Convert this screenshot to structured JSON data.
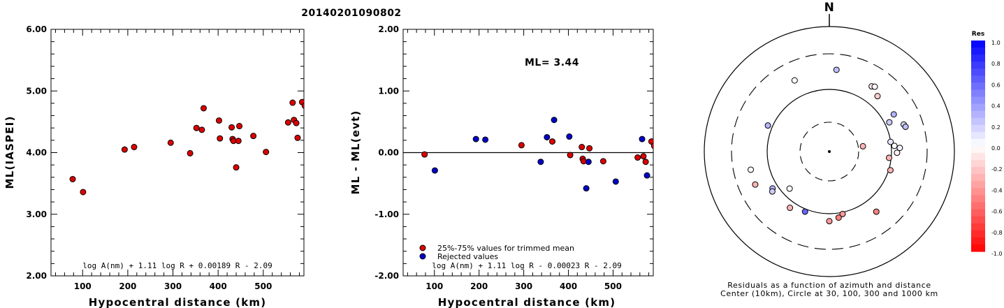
{
  "event_id": "20140201090802",
  "chart_data": [
    {
      "type": "scatter",
      "title": "",
      "xlabel": "Hypocentral distance (km)",
      "ylabel": "ML(IASPEI)",
      "xlim": [
        30,
        590
      ],
      "ylim": [
        2.0,
        6.0
      ],
      "xticks": [
        "100",
        "200",
        "300",
        "400",
        "500"
      ],
      "yticks": [
        "2.00",
        "3.00",
        "4.00",
        "5.00",
        "6.00"
      ],
      "formula": "log A(nm) + 1.11 log R + 0.00189 R - 2.09",
      "series": [
        {
          "color": "#dd0000",
          "points": [
            [
              78,
              3.57
            ],
            [
              101,
              3.36
            ],
            [
              193,
              4.05
            ],
            [
              214,
              4.09
            ],
            [
              295,
              4.16
            ],
            [
              338,
              3.99
            ],
            [
              352,
              4.4
            ],
            [
              364,
              4.37
            ],
            [
              368,
              4.72
            ],
            [
              402,
              4.52
            ],
            [
              404,
              4.23
            ],
            [
              430,
              4.41
            ],
            [
              432,
              4.22
            ],
            [
              434,
              4.19
            ],
            [
              440,
              3.76
            ],
            [
              445,
              4.19
            ],
            [
              447,
              4.43
            ],
            [
              478,
              4.27
            ],
            [
              506,
              4.01
            ],
            [
              555,
              4.49
            ],
            [
              565,
              4.81
            ],
            [
              568,
              4.53
            ],
            [
              573,
              4.48
            ],
            [
              576,
              4.24
            ],
            [
              586,
              4.82
            ],
            [
              592,
              4.76
            ]
          ]
        }
      ]
    },
    {
      "type": "scatter",
      "title": "",
      "xlabel": "Hypocentral distance (km)",
      "ylabel": "ML - ML(evt)",
      "xlim": [
        30,
        590
      ],
      "ylim": [
        -2.0,
        2.0
      ],
      "xticks": [
        "100",
        "200",
        "300",
        "400",
        "500"
      ],
      "yticks": [
        "-2.00",
        "-1.00",
        "0.00",
        "1.00",
        "2.00"
      ],
      "annotation": "ML= 3.44",
      "formula": "log A(nm) + 1.11 log R - 0.00023 R - 2.09",
      "series": [
        {
          "name": "25%-75% values for trimmed mean",
          "color": "#dd0000",
          "points": [
            [
              78,
              -0.03
            ],
            [
              295,
              0.12
            ],
            [
              364,
              0.18
            ],
            [
              404,
              -0.04
            ],
            [
              430,
              0.09
            ],
            [
              432,
              -0.1
            ],
            [
              434,
              -0.14
            ],
            [
              447,
              0.07
            ],
            [
              478,
              -0.14
            ],
            [
              555,
              -0.08
            ],
            [
              568,
              -0.06
            ],
            [
              573,
              -0.15
            ],
            [
              586,
              0.18
            ],
            [
              592,
              0.11
            ]
          ]
        },
        {
          "name": "Rejected values",
          "color": "#0000cc",
          "points": [
            [
              101,
              -0.29
            ],
            [
              193,
              0.22
            ],
            [
              214,
              0.21
            ],
            [
              338,
              -0.15
            ],
            [
              352,
              0.25
            ],
            [
              368,
              0.53
            ],
            [
              402,
              0.26
            ],
            [
              440,
              -0.58
            ],
            [
              445,
              -0.15
            ],
            [
              506,
              -0.47
            ],
            [
              565,
              0.22
            ],
            [
              576,
              -0.37
            ]
          ]
        }
      ]
    },
    {
      "type": "scatter",
      "title": "N",
      "caption_line1": "Residuals as a function of azimuth and distance",
      "caption_line2": "Center (10km), Circle at 30, 100, 300 and 1000 km",
      "colorbar_label": "Res",
      "colorbar_ticks": [
        "1.0",
        "0.8",
        "0.6",
        "0.4",
        "0.2",
        "0.0",
        "-0.2",
        "-0.4",
        "-0.6",
        "-0.8",
        "-1.0"
      ],
      "stations": [
        {
          "az": 5,
          "dist": 590,
          "res": 0.25
        },
        {
          "az": 334,
          "dist": 560,
          "res": 0.0
        },
        {
          "az": 33,
          "dist": 545,
          "res": -0.1
        },
        {
          "az": 35,
          "dist": 560,
          "res": 0.0
        },
        {
          "az": 41,
          "dist": 500,
          "res": -0.2
        },
        {
          "az": 293,
          "dist": 430,
          "res": 0.3
        },
        {
          "az": 60,
          "dist": 510,
          "res": 0.3
        },
        {
          "az": 64,
          "dist": 430,
          "res": 0.2
        },
        {
          "az": 70,
          "dist": 560,
          "res": 0.15
        },
        {
          "az": 72,
          "dist": 570,
          "res": 0.25
        },
        {
          "az": 81,
          "dist": 88,
          "res": -0.3
        },
        {
          "az": 257,
          "dist": 575,
          "res": 0.0
        },
        {
          "az": 81,
          "dist": 380,
          "res": 0.1
        },
        {
          "az": 85,
          "dist": 415,
          "res": 0.0
        },
        {
          "az": 91,
          "dist": 440,
          "res": -0.05
        },
        {
          "az": 87,
          "dist": 470,
          "res": 0.05
        },
        {
          "az": 246,
          "dist": 580,
          "res": -0.3
        },
        {
          "az": 96,
          "dist": 360,
          "res": -0.3
        },
        {
          "az": 107,
          "dist": 400,
          "res": -0.3
        },
        {
          "az": 237,
          "dist": 440,
          "res": 0.3
        },
        {
          "az": 235,
          "dist": 460,
          "res": 0.2
        },
        {
          "az": 227,
          "dist": 300,
          "res": 0.0
        },
        {
          "az": 215,
          "dist": 450,
          "res": -0.3
        },
        {
          "az": 202,
          "dist": 410,
          "res": 0.6
        },
        {
          "az": 168,
          "dist": 400,
          "res": -0.4
        },
        {
          "az": 180,
          "dist": 460,
          "res": -0.4
        },
        {
          "az": 172,
          "dist": 430,
          "res": -0.5
        },
        {
          "az": 142,
          "dist": 530,
          "res": -0.5
        }
      ]
    }
  ]
}
